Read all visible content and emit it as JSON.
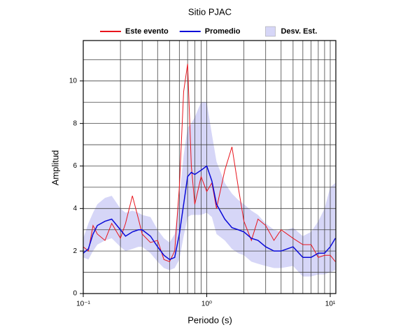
{
  "chart_data": {
    "type": "line",
    "title": "Sitio PJAC",
    "xlabel": "Periodo (s)",
    "ylabel": "Amplitud",
    "xscale": "log",
    "grid": true,
    "xlim": [
      0.1,
      11.1
    ],
    "ylim": [
      0,
      11.9
    ],
    "xticks": [
      {
        "value": 0.1,
        "label": "10⁻¹"
      },
      {
        "value": 1,
        "label": "10⁰"
      },
      {
        "value": 10,
        "label": "10¹"
      }
    ],
    "xminorticks": [
      0.2,
      0.3,
      0.4,
      0.5,
      0.6,
      0.7,
      0.8,
      0.9,
      2,
      3,
      4,
      5,
      6,
      7,
      8,
      9
    ],
    "yticks": [
      0,
      2,
      4,
      6,
      8,
      10
    ],
    "yminorticks": [
      1,
      3,
      5,
      7,
      9,
      11
    ],
    "x": [
      0.1,
      0.11,
      0.12,
      0.13,
      0.15,
      0.17,
      0.2,
      0.22,
      0.25,
      0.28,
      0.3,
      0.35,
      0.4,
      0.45,
      0.5,
      0.55,
      0.6,
      0.65,
      0.7,
      0.75,
      0.8,
      0.9,
      1.0,
      1.1,
      1.2,
      1.4,
      1.6,
      1.8,
      2.0,
      2.3,
      2.6,
      3.0,
      3.5,
      4,
      5,
      6,
      7,
      8,
      9,
      10,
      11
    ],
    "band": {
      "name": "Desv. Est.",
      "color": "#d6d6f7",
      "upper": [
        2.6,
        3.3,
        3.8,
        4.2,
        4.5,
        4.6,
        4.0,
        3.8,
        3.9,
        3.8,
        3.7,
        3.6,
        3.0,
        2.6,
        2.4,
        2.8,
        4.5,
        6.5,
        7.8,
        8.0,
        8.3,
        9.0,
        9.0,
        7.5,
        6.2,
        5.2,
        4.7,
        4.4,
        4.2,
        3.9,
        3.7,
        3.3,
        3.0,
        2.9,
        3.1,
        2.7,
        2.9,
        3.4,
        4.0,
        5.0,
        5.2
      ],
      "lower": [
        1.7,
        1.6,
        2.0,
        2.3,
        2.5,
        2.6,
        2.2,
        2.0,
        2.1,
        2.2,
        2.2,
        1.9,
        1.5,
        1.2,
        1.1,
        1.2,
        1.6,
        2.7,
        3.6,
        3.7,
        3.7,
        3.7,
        3.8,
        3.6,
        2.8,
        2.5,
        2.1,
        1.9,
        1.8,
        1.5,
        1.4,
        1.3,
        1.2,
        1.2,
        1.3,
        0.8,
        0.8,
        0.9,
        0.9,
        1.0,
        1.1
      ]
    },
    "series": [
      {
        "name": "Este evento",
        "color": "#e8141c",
        "values": [
          2.2,
          2.0,
          3.2,
          2.8,
          2.5,
          3.3,
          2.6,
          3.3,
          4.6,
          3.5,
          2.8,
          2.4,
          2.5,
          1.6,
          1.5,
          2.0,
          5.0,
          9.5,
          10.8,
          6.0,
          4.2,
          5.5,
          4.8,
          5.2,
          4.0,
          5.8,
          6.9,
          5.0,
          3.4,
          2.5,
          3.5,
          3.2,
          2.5,
          3.0,
          2.6,
          2.3,
          2.3,
          1.7,
          1.8,
          1.8,
          1.5
        ]
      },
      {
        "name": "Promedio",
        "color": "#0a0ad8",
        "values": [
          1.9,
          2.1,
          2.8,
          3.2,
          3.4,
          3.5,
          3.0,
          2.7,
          2.9,
          3.0,
          3.0,
          2.7,
          2.2,
          1.8,
          1.6,
          1.7,
          2.8,
          4.2,
          5.5,
          5.7,
          5.6,
          5.8,
          6.0,
          5.3,
          4.2,
          3.5,
          3.1,
          3.0,
          2.9,
          2.6,
          2.5,
          2.2,
          2.0,
          2.0,
          2.2,
          1.7,
          1.7,
          1.9,
          1.9,
          2.2,
          2.6
        ]
      }
    ]
  }
}
